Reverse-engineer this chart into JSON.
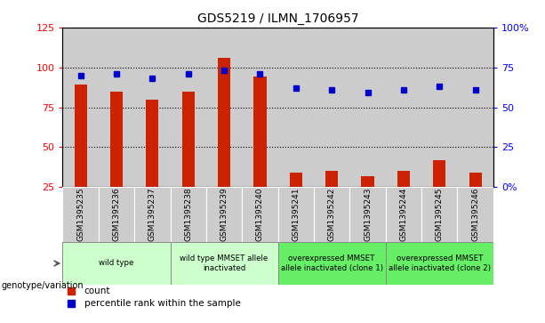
{
  "title": "GDS5219 / ILMN_1706957",
  "samples": [
    "GSM1395235",
    "GSM1395236",
    "GSM1395237",
    "GSM1395238",
    "GSM1395239",
    "GSM1395240",
    "GSM1395241",
    "GSM1395242",
    "GSM1395243",
    "GSM1395244",
    "GSM1395245",
    "GSM1395246"
  ],
  "counts": [
    89,
    85,
    80,
    85,
    106,
    94,
    34,
    35,
    32,
    35,
    42,
    34
  ],
  "percentiles": [
    70,
    71,
    68,
    71,
    73,
    71,
    62,
    61,
    59,
    61,
    63,
    61
  ],
  "ylim_left": [
    25,
    125
  ],
  "ylim_right": [
    0,
    100
  ],
  "yticks_left": [
    25,
    50,
    75,
    100,
    125
  ],
  "yticks_right": [
    0,
    25,
    50,
    75,
    100
  ],
  "bar_color": "#cc2200",
  "dot_color": "#0000cc",
  "plot_bg": "#ffffff",
  "col_bg": "#cccccc",
  "group_spans": [
    {
      "start": 0,
      "end": 2,
      "label": "wild type",
      "bg": "#ccffcc"
    },
    {
      "start": 3,
      "end": 5,
      "label": "wild type MMSET allele\ninactivated",
      "bg": "#ccffcc"
    },
    {
      "start": 6,
      "end": 8,
      "label": "overexpressed MMSET\nallele inactivated (clone 1)",
      "bg": "#66ee66"
    },
    {
      "start": 9,
      "end": 11,
      "label": "overexpressed MMSET\nallele inactivated (clone 2)",
      "bg": "#66ee66"
    }
  ],
  "genotype_label": "genotype/variation",
  "legend_count": "count",
  "legend_pct": "percentile rank within the sample"
}
